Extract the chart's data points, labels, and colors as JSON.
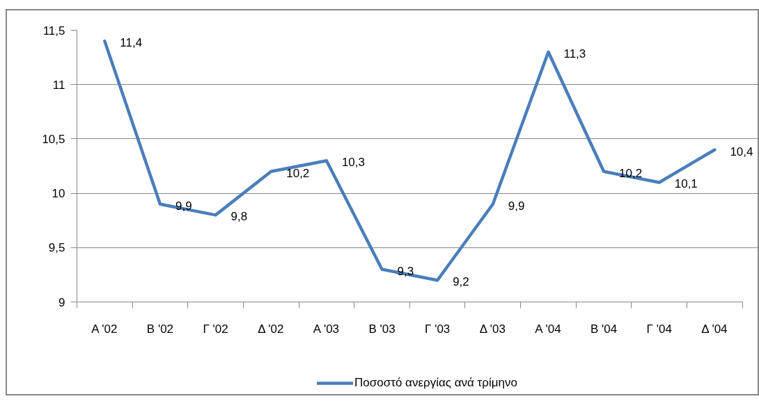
{
  "chart_data": {
    "type": "line",
    "categories": [
      "Α '02",
      "Β '02",
      "Γ '02",
      "Δ '02",
      "Α '03",
      "Β '03",
      "Γ '03",
      "Δ '03",
      "Α '04",
      "Β '04",
      "Γ '04",
      "Δ '04"
    ],
    "series": [
      {
        "name": "Ποσοστό ανεργίας ανά τρίμηνο",
        "color": "#4a7ebb",
        "values": [
          11.4,
          9.9,
          9.8,
          10.2,
          10.3,
          9.3,
          9.2,
          9.9,
          11.3,
          10.2,
          10.1,
          10.4
        ],
        "value_labels": [
          "11,4",
          "9,9",
          "9,8",
          "10,2",
          "10,3",
          "9,3",
          "9,2",
          "9,9",
          "11,3",
          "10,2",
          "10,1",
          "10,4"
        ]
      }
    ],
    "ylim": [
      9,
      11.5
    ],
    "yticks": [
      9,
      {
        "value": 9.5,
        "label": "9,5"
      },
      10,
      {
        "value": 10.5,
        "label": "10,5"
      },
      11,
      {
        "value": 11.5,
        "label": "11,5"
      }
    ],
    "grid": "y",
    "legend": "bottom",
    "marker": "none",
    "line_style": "solid"
  }
}
